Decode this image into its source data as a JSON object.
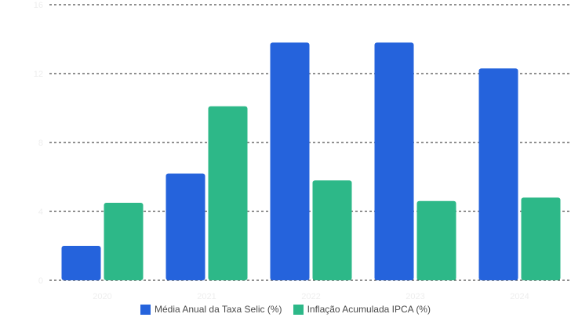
{
  "chart_data": {
    "type": "bar",
    "categories": [
      "2020",
      "2021",
      "2022",
      "2023",
      "2024"
    ],
    "series": [
      {
        "name": "Média Anual da Taxa Selic (%)",
        "values": [
          2.0,
          6.2,
          13.8,
          13.8,
          12.3
        ],
        "color": "#2563dc"
      },
      {
        "name": "Inflação Acumulada IPCA (%)",
        "values": [
          4.5,
          10.1,
          5.8,
          4.6,
          4.8
        ],
        "color": "#2db888"
      }
    ],
    "yticks": [
      "0",
      "4",
      "8",
      "12",
      "16"
    ],
    "ylim": [
      0,
      16
    ],
    "grid": true,
    "grid_style": "dashed",
    "legend_position": "bottom",
    "title": "",
    "xlabel": "",
    "ylabel": ""
  }
}
